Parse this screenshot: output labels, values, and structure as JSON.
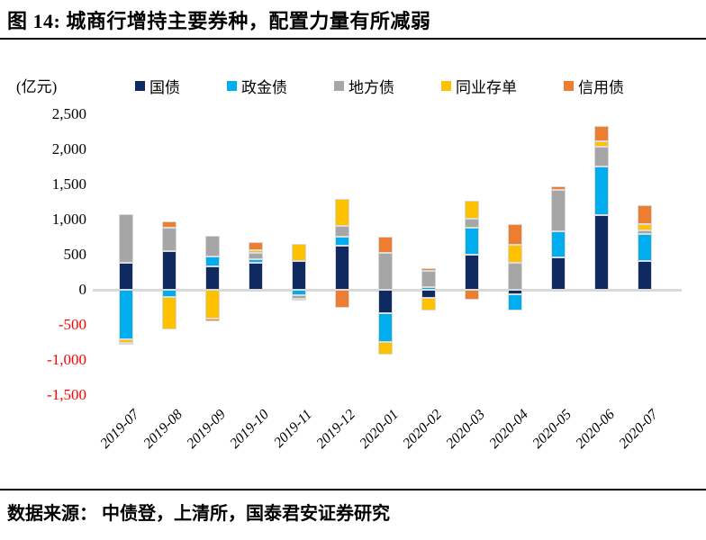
{
  "header": {
    "title": "图 14:  城商行增持主要券种，配置力量有所减弱"
  },
  "footer": {
    "source_text": "数据来源：  中债登，上清所，国泰君安证券研究"
  },
  "colors": {
    "negative_tick": "#FF0000",
    "zero_line": "#D9D9D9",
    "rule": "#000000"
  },
  "chart_data": {
    "type": "bar",
    "stacked": true,
    "unit_label": "(亿元)",
    "title": "城商行增持主要券种，配置力量有所减弱",
    "xlabel": "",
    "ylabel": "亿元",
    "ylim": [
      -1500,
      2500
    ],
    "grid": false,
    "legend_position": "top",
    "categories": [
      "2019-07",
      "2019-08",
      "2019-09",
      "2019-10",
      "2019-11",
      "2019-12",
      "2020-01",
      "2020-02",
      "2020-03",
      "2020-04",
      "2020-05",
      "2020-06",
      "2020-07"
    ],
    "series": [
      {
        "name": "国债",
        "color": "#0F2A60",
        "values": [
          390,
          550,
          330,
          390,
          410,
          630,
          -330,
          -110,
          500,
          -60,
          460,
          1060,
          410
        ]
      },
      {
        "name": "政金债",
        "color": "#00AEEF",
        "values": [
          -700,
          -100,
          150,
          50,
          -80,
          130,
          -410,
          40,
          380,
          -240,
          370,
          700,
          380
        ]
      },
      {
        "name": "地方债",
        "color": "#A6A6A6",
        "values": [
          690,
          330,
          290,
          90,
          -50,
          150,
          530,
          230,
          130,
          380,
          590,
          280,
          60
        ]
      },
      {
        "name": "同业存单",
        "color": "#FFC000",
        "values": [
          -55,
          -460,
          -410,
          30,
          250,
          390,
          -180,
          -180,
          260,
          260,
          -30,
          80,
          90
        ]
      },
      {
        "name": "信用债",
        "color": "#ED7D31",
        "values": [
          -25,
          95,
          -40,
          120,
          -25,
          -250,
          230,
          40,
          -140,
          300,
          60,
          210,
          260
        ]
      }
    ],
    "yticks": [
      {
        "label": "2,500",
        "value": 2500
      },
      {
        "label": "2,000",
        "value": 2000
      },
      {
        "label": "1,500",
        "value": 1500
      },
      {
        "label": "1,000",
        "value": 1000
      },
      {
        "label": "500",
        "value": 500
      },
      {
        "label": "0",
        "value": 0
      },
      {
        "label": "-500",
        "value": -500
      },
      {
        "label": "-1,000",
        "value": -1000
      },
      {
        "label": "-1,500",
        "value": -1500
      }
    ]
  }
}
